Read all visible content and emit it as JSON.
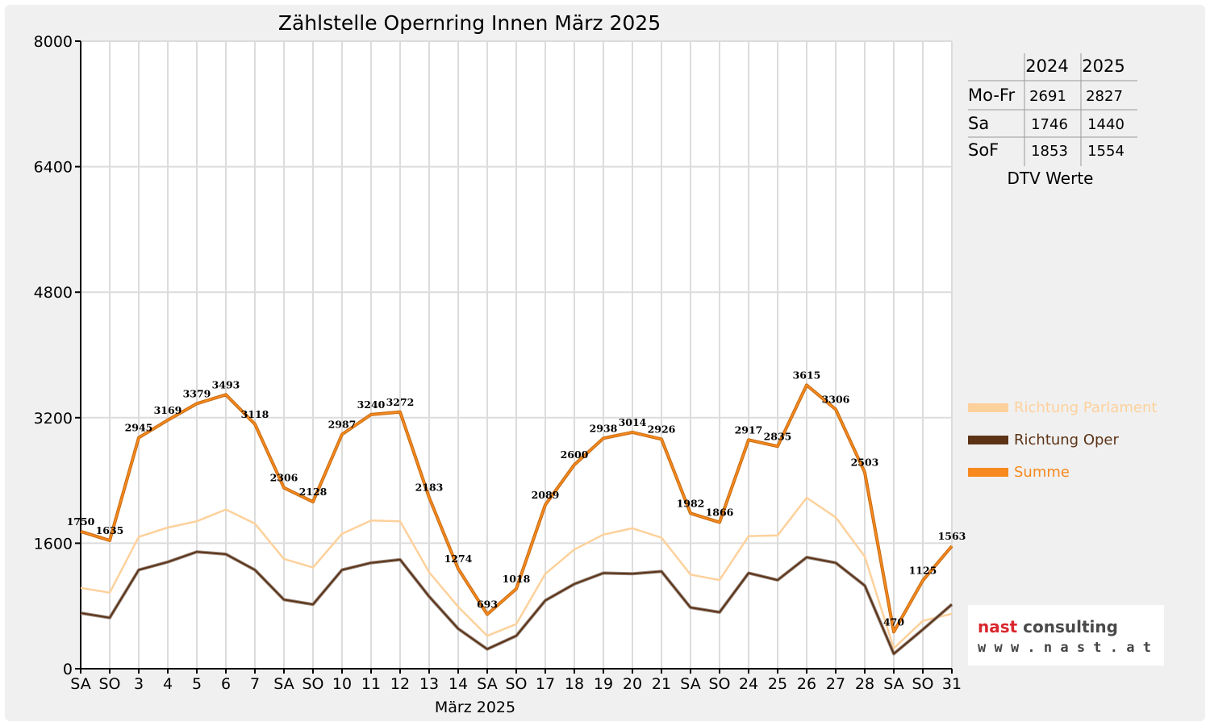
{
  "colors": {
    "parlament": "#fdd19c",
    "oper": "#5c3317",
    "summe": "#f7891e",
    "sunday": "#e00000",
    "grid": "#dcdcdc",
    "frame": "#f0f0f0",
    "logo_red": "#d9262e",
    "logo_grey": "#4a4a4a"
  },
  "chart_data": {
    "type": "line",
    "title": "Zählstelle Opernring Innen März 2025",
    "xlabel": "März 2025",
    "ylabel": "",
    "ylim": [
      0,
      8000
    ],
    "yticks": [
      "0",
      "1600",
      "3200",
      "4800",
      "6400",
      "8000"
    ],
    "grid": true,
    "legend_position": "right",
    "categories": [
      "SA",
      "SO",
      "3",
      "4",
      "5",
      "6",
      "7",
      "SA",
      "SO",
      "10",
      "11",
      "12",
      "13",
      "14",
      "SA",
      "SO",
      "17",
      "18",
      "19",
      "20",
      "21",
      "SA",
      "SO",
      "24",
      "25",
      "26",
      "27",
      "28",
      "SA",
      "SO",
      "31"
    ],
    "sunday_flags": [
      false,
      true,
      false,
      false,
      false,
      false,
      false,
      false,
      true,
      false,
      false,
      false,
      false,
      false,
      false,
      true,
      false,
      false,
      false,
      false,
      false,
      false,
      true,
      false,
      false,
      false,
      false,
      false,
      false,
      true,
      false
    ],
    "series": [
      {
        "name": "Richtung Parlament",
        "color": "#fdd19c",
        "values": [
          1030,
          970,
          1680,
          1800,
          1880,
          2030,
          1850,
          1400,
          1290,
          1720,
          1890,
          1880,
          1230,
          790,
          420,
          570,
          1210,
          1520,
          1710,
          1790,
          1670,
          1200,
          1130,
          1690,
          1700,
          2180,
          1930,
          1430,
          260,
          610,
          700
        ]
      },
      {
        "name": "Richtung Oper",
        "color": "#5c3317",
        "values": [
          710,
          650,
          1260,
          1360,
          1490,
          1460,
          1260,
          880,
          820,
          1260,
          1350,
          1390,
          920,
          510,
          250,
          420,
          870,
          1080,
          1220,
          1210,
          1240,
          780,
          720,
          1220,
          1130,
          1420,
          1350,
          1060,
          190,
          500,
          820
        ]
      },
      {
        "name": "Summe",
        "color": "#f7891e",
        "values": [
          1750,
          1635,
          2945,
          3169,
          3379,
          3493,
          3118,
          2306,
          2128,
          2987,
          3240,
          3272,
          2183,
          1274,
          693,
          1018,
          2089,
          2600,
          2938,
          3014,
          2926,
          1982,
          1866,
          2917,
          2835,
          3615,
          3306,
          2503,
          470,
          1125,
          1563
        ],
        "labels": [
          "1750",
          "1635",
          "2945",
          "3169",
          "3379",
          "3493",
          "3118",
          "2306",
          "2128",
          "2987",
          "3240",
          "3272",
          "2183",
          "1274",
          "693",
          "1018",
          "2089",
          "2600",
          "2938",
          "3014",
          "2926",
          "1982",
          "1866",
          "2917",
          "2835",
          "3615",
          "3306",
          "2503",
          "470",
          "1125",
          "1563"
        ]
      }
    ]
  },
  "dtv_table": {
    "header": [
      "",
      "2024",
      "2025"
    ],
    "rows": [
      {
        "label": "Mo-Fr",
        "v2024": "2691",
        "v2025": "2827"
      },
      {
        "label": "Sa",
        "v2024": "1746",
        "v2025": "1440"
      },
      {
        "label": "SoF",
        "v2024": "1853",
        "v2025": "1554"
      }
    ],
    "caption": "DTV Werte"
  },
  "logo": {
    "main": "nast consulting",
    "sub": "w w w . n a s t . a t"
  }
}
